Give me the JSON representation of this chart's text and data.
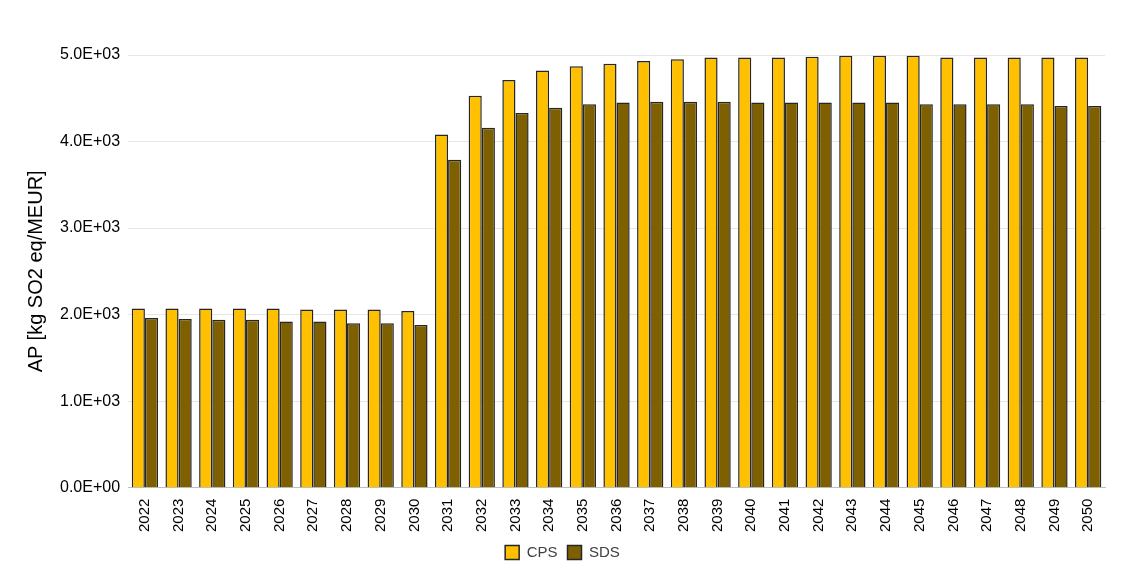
{
  "chart_data": {
    "type": "bar",
    "ylabel": "AP [kg SO2 eq/MEUR]",
    "categories": [
      "2022",
      "2023",
      "2024",
      "2025",
      "2026",
      "2027",
      "2028",
      "2029",
      "2030",
      "2031",
      "2032",
      "2033",
      "2034",
      "2035",
      "2036",
      "2037",
      "2038",
      "2039",
      "2040",
      "2041",
      "2042",
      "2043",
      "2044",
      "2045",
      "2046",
      "2047",
      "2048",
      "2049",
      "2050"
    ],
    "series": [
      {
        "name": "CPS",
        "color": "#ffc000",
        "values": [
          2070,
          2070,
          2070,
          2070,
          2070,
          2060,
          2060,
          2060,
          2040,
          4080,
          4530,
          4710,
          4820,
          4870,
          4900,
          4930,
          4950,
          4970,
          4970,
          4970,
          4980,
          4990,
          4990,
          4990,
          4970,
          4970,
          4970,
          4970,
          4970
        ]
      },
      {
        "name": "SDS",
        "color": "#7f6000",
        "values": [
          1960,
          1950,
          1940,
          1940,
          1920,
          1920,
          1900,
          1900,
          1880,
          3790,
          4160,
          4330,
          4390,
          4430,
          4450,
          4460,
          4460,
          4460,
          4450,
          4450,
          4450,
          4450,
          4450,
          4430,
          4430,
          4430,
          4430,
          4410,
          4410
        ]
      }
    ],
    "ylim": [
      0,
      5000
    ],
    "yticks": [
      {
        "value": 0,
        "label": "0.0E+00"
      },
      {
        "value": 1000,
        "label": "1.0E+03"
      },
      {
        "value": 2000,
        "label": "2.0E+03"
      },
      {
        "value": 3000,
        "label": "3.0E+03"
      },
      {
        "value": 4000,
        "label": "4.0E+03"
      },
      {
        "value": 5000,
        "label": "5.0E+03"
      }
    ],
    "grid": "y",
    "legend": "bottom"
  }
}
